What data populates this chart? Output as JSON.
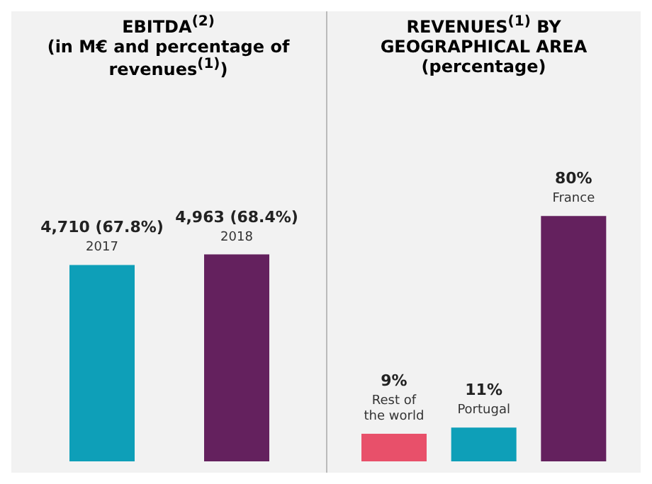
{
  "chart_data": [
    {
      "type": "bar",
      "title": "EBITDA$^{(2)}$",
      "subtitle": "(in M€ and percentage of revenues$^{(1)}$)",
      "categories": [
        "2017",
        "2018"
      ],
      "values": [
        4710,
        4963
      ],
      "colors": [
        "#0e9fb8",
        "#64215e"
      ],
      "value_labels": [
        "4,710 (67.8%)",
        "4,963 (68.4%)"
      ]
    },
    {
      "type": "bar",
      "title": "REVENUES$^{(1)}$ BY GEOGRAPHICAL AREA",
      "subtitle": "(percentage)",
      "categories": [
        "Rest of the world",
        "Portugal",
        "France"
      ],
      "values": [
        9,
        11,
        80
      ],
      "colors": [
        "#e8506a",
        "#0e9fb8",
        "#64215e"
      ],
      "value_labels": [
        "9%",
        "11%",
        "80%"
      ]
    }
  ]
}
